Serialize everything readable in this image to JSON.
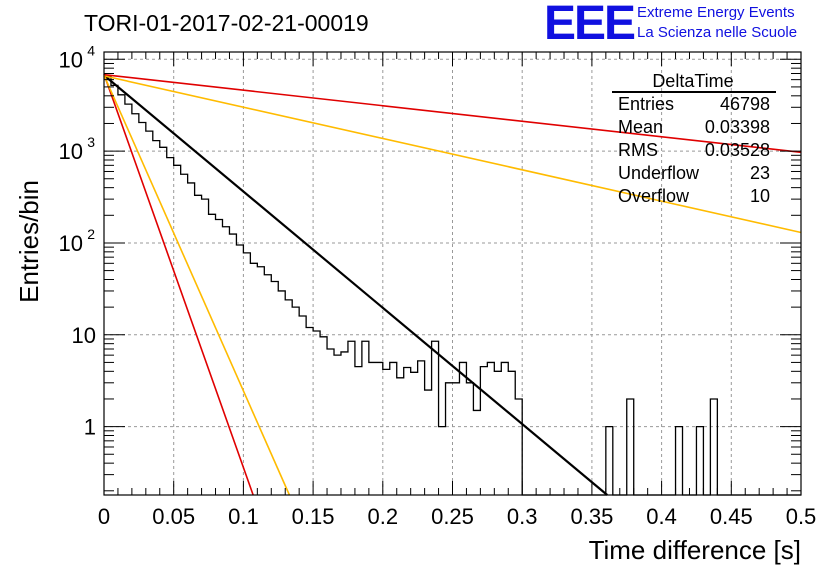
{
  "header": {
    "run_title": "TORI-01-2017-02-21-00019",
    "logo_text": "EEE",
    "logo_line1": "Extreme Energy Events",
    "logo_line2": "La Scienza nelle Scuole"
  },
  "stats_box": {
    "title": "DeltaTime",
    "rows": [
      {
        "label": "Entries",
        "value": "46798"
      },
      {
        "label": "Mean",
        "value": "0.03398"
      },
      {
        "label": "RMS",
        "value": "0.03528"
      },
      {
        "label": "Underflow",
        "value": "23"
      },
      {
        "label": "Overflow",
        "value": "10"
      }
    ]
  },
  "chart_data": {
    "type": "line",
    "title": "TORI-01-2017-02-21-00019",
    "xlabel": "Time difference [s]",
    "ylabel": "Entries/bin",
    "xlim": [
      0,
      0.5
    ],
    "ylim": [
      0.18,
      12000
    ],
    "yscale": "log",
    "grid": true,
    "x_ticks": [
      "0",
      "0.05",
      "0.1",
      "0.15",
      "0.2",
      "0.25",
      "0.3",
      "0.35",
      "0.4",
      "0.45",
      "0.5"
    ],
    "y_ticks": [
      {
        "value": 1,
        "label": "1"
      },
      {
        "value": 10,
        "label": "10"
      },
      {
        "value": 100,
        "label": "10",
        "exp": "2"
      },
      {
        "value": 1000,
        "label": "10",
        "exp": "3"
      },
      {
        "value": 10000,
        "label": "10",
        "exp": "4"
      }
    ],
    "histogram": {
      "bin_width": 0.005,
      "values": [
        6500,
        5200,
        4100,
        3250,
        2550,
        2050,
        1650,
        1300,
        1100,
        850,
        700,
        560,
        450,
        330,
        300,
        205,
        180,
        150,
        125,
        95,
        78,
        60,
        55,
        45,
        38,
        30,
        24,
        20,
        16,
        12,
        11,
        9.5,
        7,
        6,
        6.5,
        8.5,
        4.5,
        8.5,
        5,
        5,
        4.2,
        5,
        3.4,
        4.4,
        3.9,
        5.2,
        2.5,
        8.5,
        1,
        3,
        3,
        5,
        3,
        1.5,
        4.5,
        5,
        4,
        5,
        4,
        2,
        0.1,
        0.1,
        0.1,
        0.1,
        0.1,
        0.1,
        0.1,
        0.1,
        0.1,
        0.1,
        0.1,
        0.1,
        1,
        0.1,
        0.1,
        2,
        0.1,
        0.1,
        0.1,
        0.1,
        0.1,
        0.1,
        1,
        0.1,
        0.1,
        1,
        0.1,
        2,
        0.1,
        0.1,
        0.1,
        0.1,
        0.1,
        0.1,
        0.1,
        0.1,
        0.1,
        0.1,
        0.1,
        0.1
      ]
    },
    "series": [
      {
        "color": "#000000",
        "width": 2.2,
        "points": [
          [
            0,
            6700
          ],
          [
            0.361,
            0.18
          ]
        ]
      },
      {
        "color": "#e00000",
        "width": 1.6,
        "points": [
          [
            0,
            6800
          ],
          [
            0.5,
            970
          ]
        ]
      },
      {
        "color": "#ffbb00",
        "width": 1.6,
        "points": [
          [
            0,
            6600
          ],
          [
            0.5,
            130
          ]
        ]
      },
      {
        "color": "#e00000",
        "width": 1.6,
        "points": [
          [
            0,
            6900
          ],
          [
            0.107,
            0.18
          ]
        ]
      },
      {
        "color": "#ffbb00",
        "width": 1.6,
        "points": [
          [
            0,
            6700
          ],
          [
            0.133,
            0.18
          ]
        ]
      }
    ]
  }
}
